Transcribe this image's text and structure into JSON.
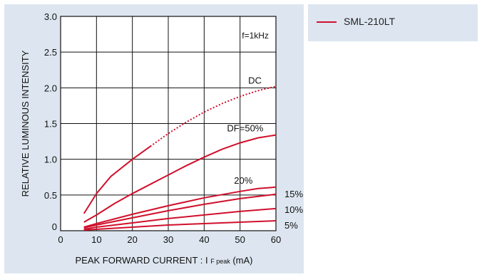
{
  "chart_data": {
    "type": "line",
    "xlabel_main": "PEAK  FORWARD  CURRENT : I",
    "xlabel_sub": "F peak",
    "xlabel_unit": "(mA)",
    "ylabel": "RELATIVE  LUMINOUS  INTENSITY",
    "xlim": [
      0,
      60
    ],
    "ylim": [
      0,
      3.0
    ],
    "xticks": [
      "0",
      "10",
      "20",
      "30",
      "40",
      "50",
      "60"
    ],
    "yticks": [
      "0",
      "0.5",
      "1.0",
      "1.5",
      "2.0",
      "2.5",
      "3.0"
    ],
    "grid": true,
    "annotation": "f=1kHz",
    "legend": {
      "position": "right",
      "entries": [
        "SML-210LT"
      ]
    },
    "series": [
      {
        "label": "DC",
        "dotted_from_x": 29,
        "points": [
          [
            6.5,
            0.24
          ],
          [
            8,
            0.36
          ],
          [
            10,
            0.52
          ],
          [
            14,
            0.76
          ],
          [
            20,
            1.0
          ],
          [
            25,
            1.18
          ],
          [
            30,
            1.36
          ],
          [
            35,
            1.52
          ],
          [
            40,
            1.66
          ],
          [
            45,
            1.78
          ],
          [
            50,
            1.88
          ],
          [
            55,
            1.96
          ],
          [
            60,
            2.02
          ]
        ]
      },
      {
        "label": "DF=50%",
        "points": [
          [
            6.5,
            0.12
          ],
          [
            10,
            0.22
          ],
          [
            15,
            0.38
          ],
          [
            20,
            0.52
          ],
          [
            25,
            0.65
          ],
          [
            30,
            0.78
          ],
          [
            35,
            0.91
          ],
          [
            40,
            1.03
          ],
          [
            45,
            1.14
          ],
          [
            50,
            1.23
          ],
          [
            55,
            1.3
          ],
          [
            60,
            1.34
          ]
        ]
      },
      {
        "label": "20%",
        "points": [
          [
            6.5,
            0.05
          ],
          [
            10,
            0.1
          ],
          [
            20,
            0.23
          ],
          [
            30,
            0.35
          ],
          [
            40,
            0.46
          ],
          [
            50,
            0.55
          ],
          [
            55,
            0.59
          ],
          [
            60,
            0.61
          ]
        ]
      },
      {
        "label": "15%",
        "points": [
          [
            6.5,
            0.04
          ],
          [
            10,
            0.08
          ],
          [
            20,
            0.18
          ],
          [
            30,
            0.28
          ],
          [
            40,
            0.37
          ],
          [
            50,
            0.45
          ],
          [
            60,
            0.51
          ]
        ]
      },
      {
        "label": "10%",
        "points": [
          [
            6.5,
            0.02
          ],
          [
            10,
            0.05
          ],
          [
            20,
            0.11
          ],
          [
            30,
            0.17
          ],
          [
            40,
            0.22
          ],
          [
            50,
            0.27
          ],
          [
            60,
            0.31
          ]
        ]
      },
      {
        "label": "5%",
        "points": [
          [
            6.5,
            0.01
          ],
          [
            10,
            0.02
          ],
          [
            20,
            0.05
          ],
          [
            30,
            0.08
          ],
          [
            40,
            0.1
          ],
          [
            50,
            0.12
          ],
          [
            60,
            0.14
          ]
        ]
      }
    ]
  }
}
